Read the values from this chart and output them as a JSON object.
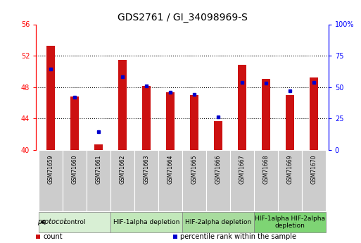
{
  "title": "GDS2761 / GI_34098969-S",
  "samples": [
    "GSM71659",
    "GSM71660",
    "GSM71661",
    "GSM71662",
    "GSM71663",
    "GSM71664",
    "GSM71665",
    "GSM71666",
    "GSM71667",
    "GSM71668",
    "GSM71669",
    "GSM71670"
  ],
  "bar_bottoms": [
    40,
    40,
    40,
    40,
    40,
    40,
    40,
    40,
    40,
    40,
    40,
    40
  ],
  "bar_heights": [
    13.3,
    6.8,
    0.7,
    11.5,
    8.1,
    7.3,
    7.0,
    3.6,
    10.8,
    9.0,
    7.0,
    9.2
  ],
  "dot_y": [
    50.3,
    46.7,
    42.3,
    49.3,
    48.1,
    47.3,
    47.1,
    44.2,
    48.6,
    48.5,
    47.5,
    48.6
  ],
  "ylim_left": [
    40,
    56
  ],
  "yticks_left": [
    40,
    44,
    48,
    52,
    56
  ],
  "ylim_right": [
    0,
    100
  ],
  "yticks_right": [
    0,
    25,
    50,
    75,
    100
  ],
  "bar_color": "#cc1111",
  "dot_color": "#0000cc",
  "bar_width": 0.35,
  "groups": [
    {
      "label": "control",
      "start": 0,
      "end": 3,
      "color": "#d8efd4"
    },
    {
      "label": "HIF-1alpha depletion",
      "start": 3,
      "end": 6,
      "color": "#c2e8ba"
    },
    {
      "label": "HIF-2alpha depletion",
      "start": 6,
      "end": 9,
      "color": "#a8dc9e"
    },
    {
      "label": "HIF-1alpha HIF-2alpha\ndepletion",
      "start": 9,
      "end": 12,
      "color": "#7ed474"
    }
  ],
  "protocol_label": "protocol",
  "legend_items": [
    {
      "label": "count",
      "color": "#cc1111"
    },
    {
      "label": "percentile rank within the sample",
      "color": "#0000cc"
    }
  ],
  "bg_color": "#ffffff",
  "plot_bg": "#ffffff",
  "tick_label_bg": "#cccccc",
  "title_fontsize": 10,
  "tick_fontsize": 7,
  "sample_fontsize": 5.5,
  "proto_fontsize": 7,
  "legend_fontsize": 7,
  "group_fontsize": 6.5
}
